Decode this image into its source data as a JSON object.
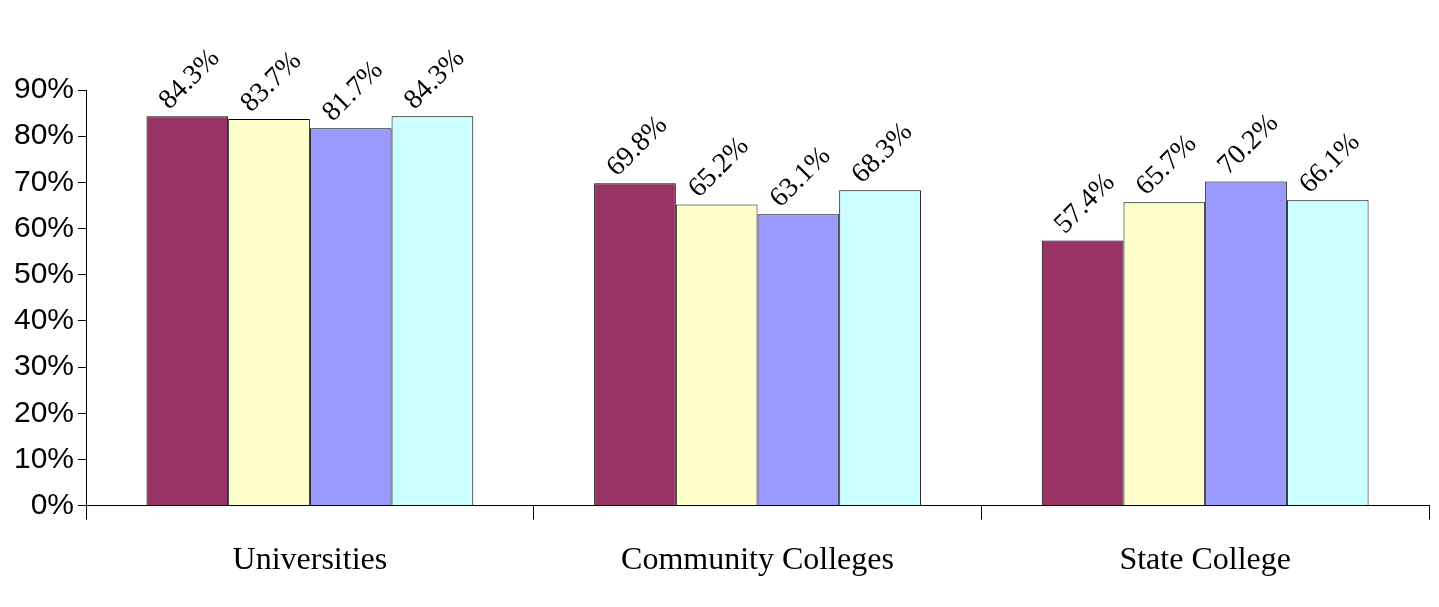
{
  "chart_data": {
    "type": "bar",
    "categories": [
      "Universities",
      "Community Colleges",
      "State College"
    ],
    "series": [
      {
        "color": "#993366",
        "values": [
          84.3,
          69.8,
          57.4
        ],
        "value_labels": [
          "84.3%",
          "69.8%",
          "57.4%"
        ]
      },
      {
        "color": "#ffffcc",
        "values": [
          83.7,
          65.2,
          65.7
        ],
        "value_labels": [
          "83.7%",
          "65.2%",
          "65.7%"
        ]
      },
      {
        "color": "#9999ff",
        "values": [
          81.7,
          63.1,
          70.2
        ],
        "value_labels": [
          "81.7%",
          "63.1%",
          "70.2%"
        ]
      },
      {
        "color": "#ccffff",
        "values": [
          84.3,
          68.3,
          66.1
        ],
        "value_labels": [
          "84.3%",
          "68.3%",
          "66.1%"
        ]
      }
    ],
    "ylim": [
      0,
      90
    ],
    "yticks": [
      {
        "value": 0,
        "label": "0%"
      },
      {
        "value": 10,
        "label": "10%"
      },
      {
        "value": 20,
        "label": "20%"
      },
      {
        "value": 30,
        "label": "30%"
      },
      {
        "value": 40,
        "label": "40%"
      },
      {
        "value": 50,
        "label": "50%"
      },
      {
        "value": 60,
        "label": "60%"
      },
      {
        "value": 70,
        "label": "70%"
      },
      {
        "value": 80,
        "label": "80%"
      },
      {
        "value": 90,
        "label": "90%"
      }
    ],
    "grid": false,
    "legend": false
  }
}
